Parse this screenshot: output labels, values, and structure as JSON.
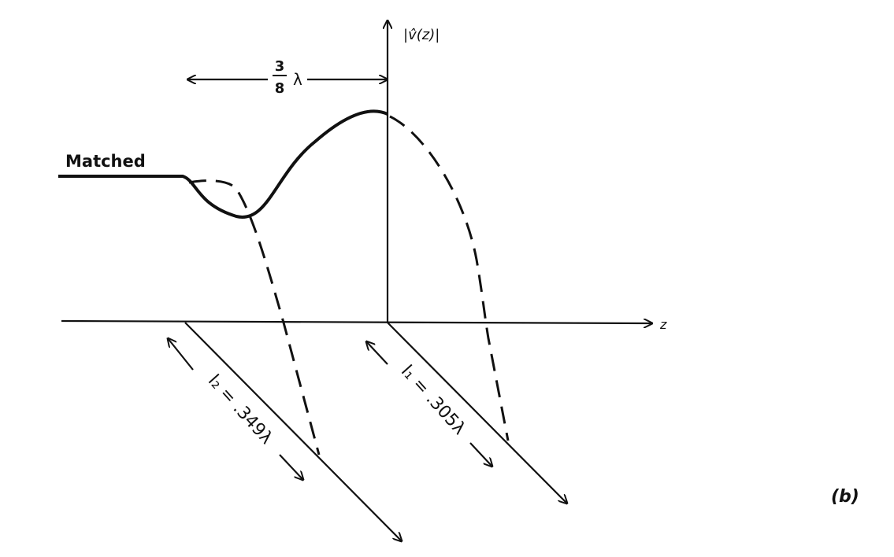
{
  "labels": {
    "y_axis": "|v̂(z)|",
    "fraction_numerator": "3",
    "fraction_denominator": "8",
    "lambda": "λ",
    "matched": "Matched",
    "x_axis": "z",
    "stub2": "l₂ = .349λ",
    "stub1": "l₁ = .305λ",
    "panel": "(b)"
  }
}
